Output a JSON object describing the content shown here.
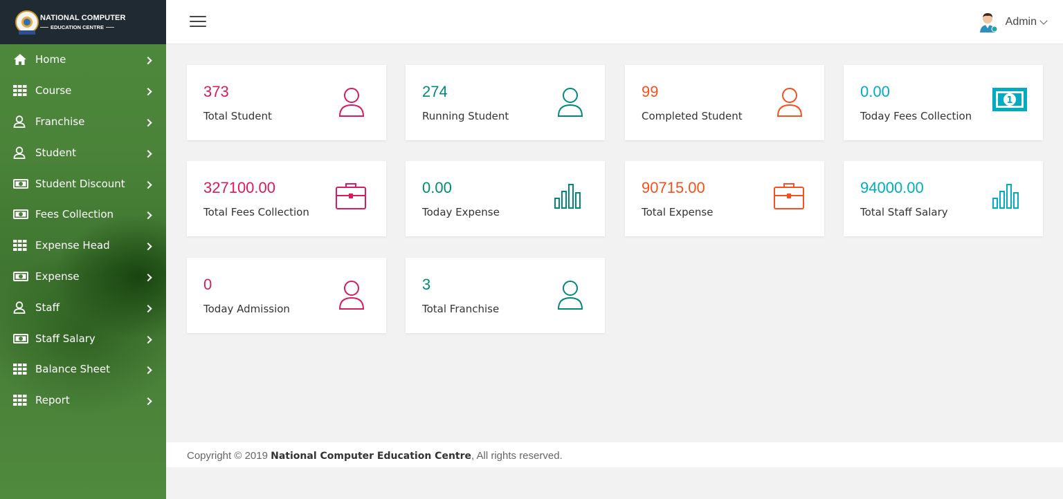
{
  "brand": {
    "title": "NATIONAL COMPUTER",
    "subtitle": "EDUCATION CENTRE"
  },
  "sidebar": {
    "items": [
      {
        "label": "Home",
        "icon": "home-icon"
      },
      {
        "label": "Course",
        "icon": "grid-icon"
      },
      {
        "label": "Franchise",
        "icon": "user-icon"
      },
      {
        "label": "Student",
        "icon": "user-icon"
      },
      {
        "label": "Student Discount",
        "icon": "money-icon"
      },
      {
        "label": "Fees Collection",
        "icon": "money-icon"
      },
      {
        "label": "Expense Head",
        "icon": "grid-icon"
      },
      {
        "label": "Expense",
        "icon": "money-icon"
      },
      {
        "label": "Staff",
        "icon": "user-icon"
      },
      {
        "label": "Staff Salary",
        "icon": "money-icon"
      },
      {
        "label": "Balance Sheet",
        "icon": "grid-icon"
      },
      {
        "label": "Report",
        "icon": "grid-icon"
      }
    ]
  },
  "header": {
    "user_name": "Admin"
  },
  "cards": [
    {
      "value": "373",
      "label": "Total Student",
      "icon": "user-icon",
      "color": "#d81b60"
    },
    {
      "value": "274",
      "label": "Running Student",
      "icon": "user-icon",
      "color": "#00897b"
    },
    {
      "value": "99",
      "label": "Completed Student",
      "icon": "user-icon",
      "color": "#f4511e"
    },
    {
      "value": "0.00",
      "label": "Today Fees Collection",
      "icon": "money-icon",
      "color": "#00acc1"
    },
    {
      "value": "327100.00",
      "label": "Total Fees Collection",
      "icon": "briefcase-icon",
      "color": "#d81b60"
    },
    {
      "value": "0.00",
      "label": "Today Expense",
      "icon": "bar-chart-icon",
      "color": "#00897b"
    },
    {
      "value": "90715.00",
      "label": "Total Expense",
      "icon": "briefcase-icon",
      "color": "#f4511e"
    },
    {
      "value": "94000.00",
      "label": "Total Staff Salary",
      "icon": "bar-chart-icon",
      "color": "#00acc1"
    },
    {
      "value": "0",
      "label": "Today Admission",
      "icon": "user-icon",
      "color": "#d81b60"
    },
    {
      "value": "3",
      "label": "Total Franchise",
      "icon": "user-icon",
      "color": "#00897b"
    }
  ],
  "footer": {
    "prefix": "Copyright © 2019 ",
    "org": "National Computer Education Centre",
    "suffix": ", All rights reserved."
  }
}
